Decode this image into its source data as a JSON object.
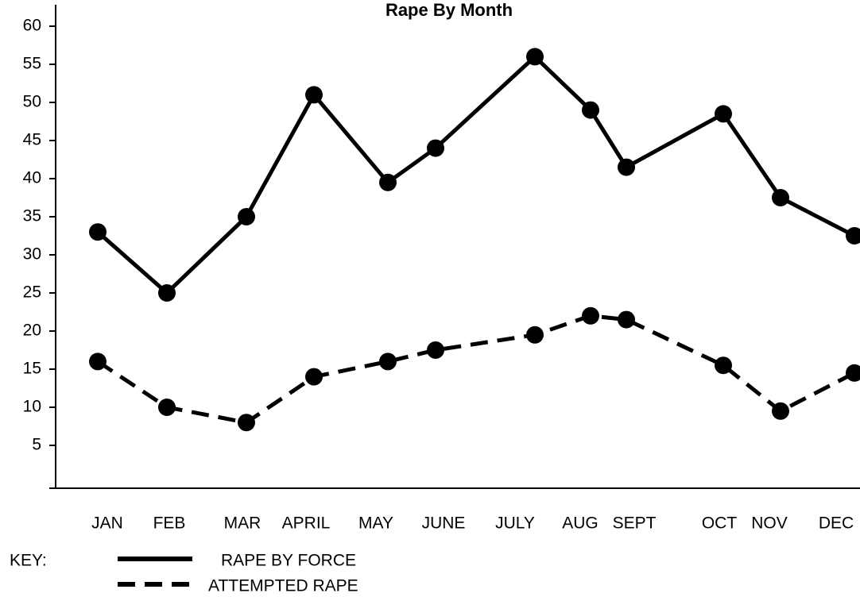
{
  "chart_data": {
    "type": "line",
    "title": "Rape By Month",
    "categories": [
      "JAN",
      "FEB",
      "MAR",
      "APRIL",
      "MAY",
      "JUNE",
      "JULY",
      "AUG",
      "SEPT",
      "OCT",
      "NOV",
      "DEC"
    ],
    "series": [
      {
        "name": "RAPE BY FORCE",
        "color": "#000000",
        "linestyle": "solid",
        "values": [
          33,
          25,
          35,
          51,
          39.5,
          44,
          56,
          49,
          41.5,
          48.5,
          37.5,
          32.5
        ]
      },
      {
        "name": "ATTEMPTED RAPE",
        "color": "#000000",
        "linestyle": "dashed",
        "values": [
          16,
          10,
          8,
          14,
          16,
          17.5,
          19.5,
          22,
          21.5,
          15.5,
          9.5,
          14.5
        ]
      }
    ],
    "ylim": [
      0,
      60
    ],
    "yticks": [
      5,
      10,
      15,
      20,
      25,
      30,
      35,
      40,
      45,
      50,
      55,
      60
    ],
    "grid": false,
    "legend_title": "KEY:"
  }
}
